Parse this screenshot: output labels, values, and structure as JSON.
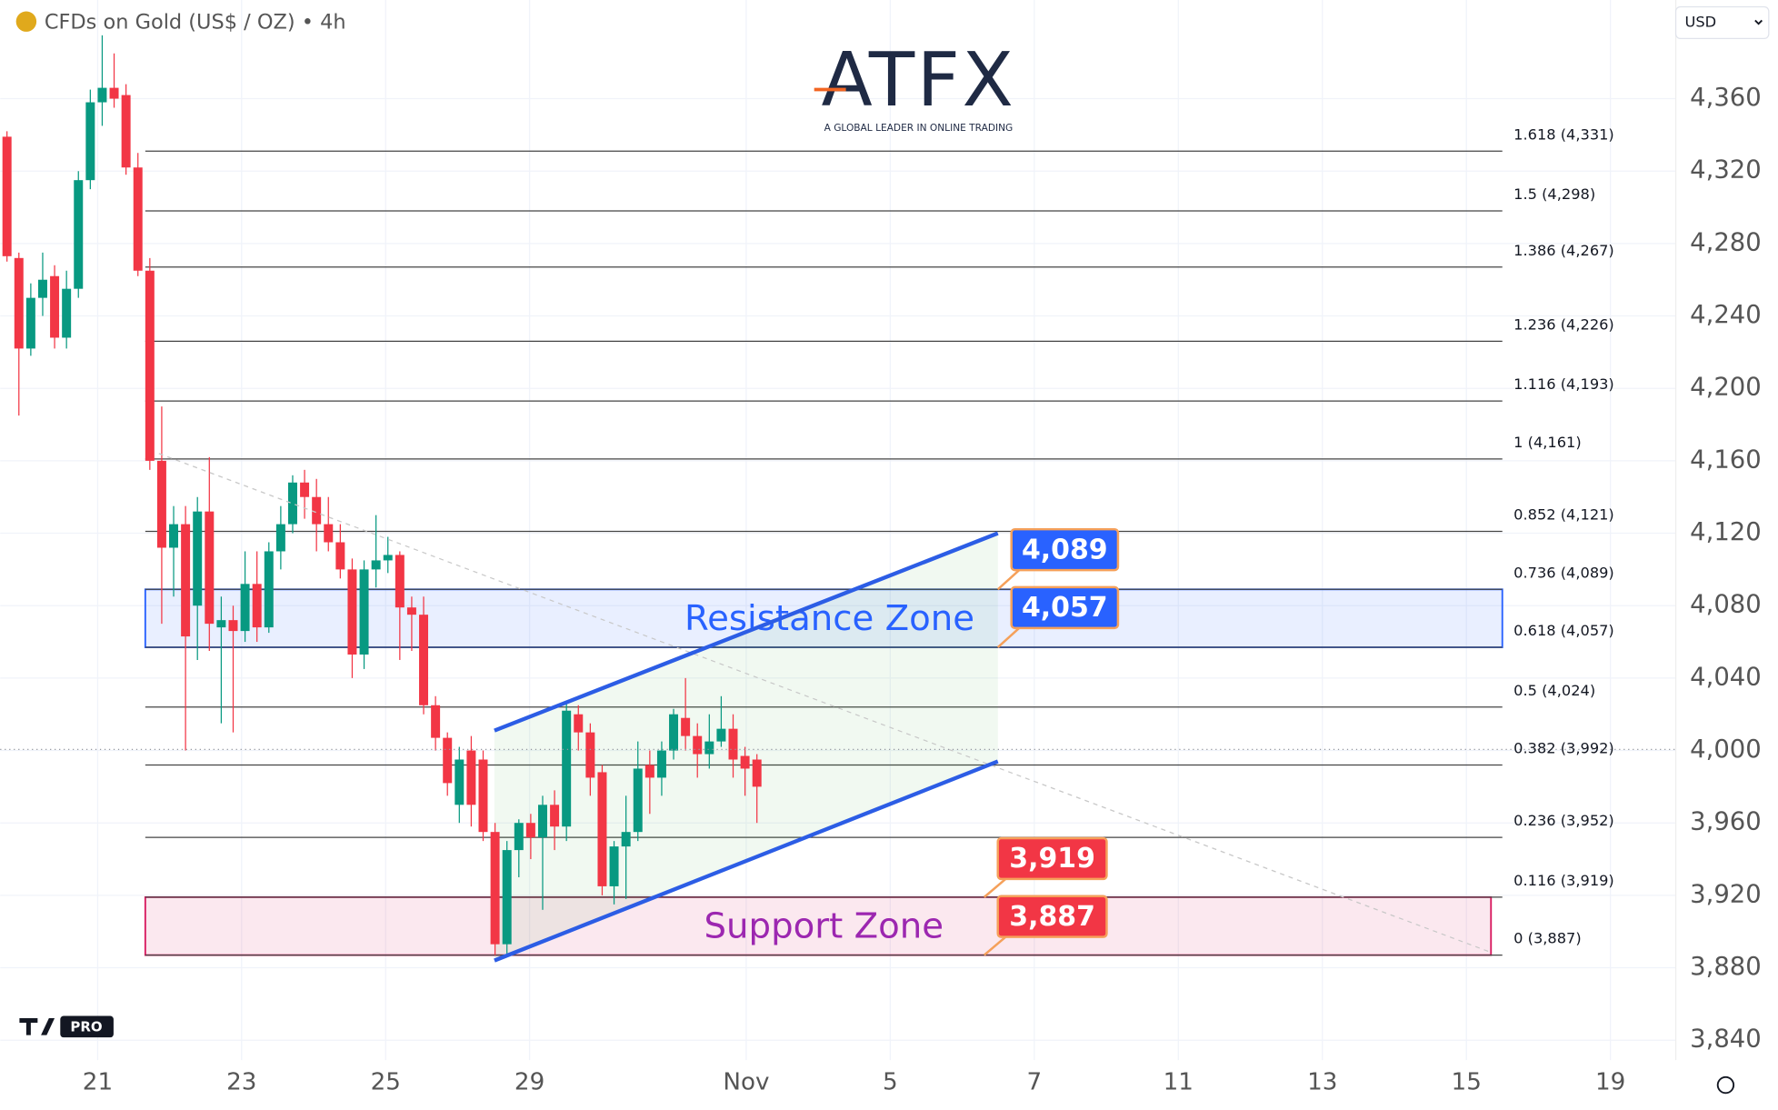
{
  "chart_data": {
    "type": "candlestick",
    "title": "CFDs on Gold (US$ / OZ) • 4h",
    "currency": "USD",
    "logo": "ATFX",
    "tagline": "A GLOBAL LEADER IN ONLINE TRADING",
    "badge": "PRO",
    "up_color": "#089981",
    "down_color": "#f23645",
    "x": [
      0,
      1,
      2,
      3,
      4,
      5,
      6,
      7,
      8,
      9,
      10,
      11,
      12,
      13,
      14,
      15,
      16,
      17,
      18,
      19,
      20,
      21,
      22,
      23,
      24,
      25,
      26,
      27,
      28,
      29,
      30,
      31,
      32,
      33,
      34,
      35,
      36,
      37,
      38,
      39,
      40,
      41,
      42,
      43,
      44,
      45,
      46,
      47,
      48,
      49,
      50,
      51,
      52,
      53,
      54,
      55,
      56,
      57,
      58,
      59,
      60,
      61,
      62,
      63
    ],
    "candles": [
      [
        4339,
        4342,
        4270,
        4273
      ],
      [
        4272,
        4275,
        4185,
        4222
      ],
      [
        4222,
        4258,
        4218,
        4250
      ],
      [
        4250,
        4275,
        4240,
        4260
      ],
      [
        4262,
        4268,
        4222,
        4228
      ],
      [
        4228,
        4265,
        4222,
        4255
      ],
      [
        4255,
        4320,
        4250,
        4315
      ],
      [
        4315,
        4365,
        4310,
        4358
      ],
      [
        4358,
        4395,
        4345,
        4366
      ],
      [
        4366,
        4385,
        4355,
        4360
      ],
      [
        4362,
        4368,
        4318,
        4322
      ],
      [
        4322,
        4330,
        4262,
        4265
      ],
      [
        4265,
        4272,
        4155,
        4160
      ],
      [
        4160,
        4190,
        4070,
        4112
      ],
      [
        4112,
        4135,
        4085,
        4125
      ],
      [
        4125,
        4135,
        4000,
        4063
      ],
      [
        4080,
        4140,
        4050,
        4132
      ],
      [
        4132,
        4162,
        4055,
        4070
      ],
      [
        4068,
        4085,
        4015,
        4072
      ],
      [
        4072,
        4080,
        4010,
        4066
      ],
      [
        4066,
        4110,
        4060,
        4092
      ],
      [
        4092,
        4110,
        4060,
        4068
      ],
      [
        4068,
        4115,
        4065,
        4110
      ],
      [
        4110,
        4135,
        4100,
        4125
      ],
      [
        4125,
        4152,
        4120,
        4148
      ],
      [
        4148,
        4155,
        4128,
        4140
      ],
      [
        4140,
        4150,
        4110,
        4125
      ],
      [
        4125,
        4140,
        4110,
        4115
      ],
      [
        4115,
        4125,
        4095,
        4100
      ],
      [
        4100,
        4106,
        4040,
        4053
      ],
      [
        4053,
        4105,
        4045,
        4100
      ],
      [
        4100,
        4130,
        4090,
        4105
      ],
      [
        4105,
        4118,
        4098,
        4108
      ],
      [
        4108,
        4110,
        4050,
        4079
      ],
      [
        4079,
        4085,
        4055,
        4075
      ],
      [
        4075,
        4085,
        4020,
        4025
      ],
      [
        4025,
        4030,
        4000,
        4007
      ],
      [
        4007,
        4010,
        3975,
        3982
      ],
      [
        3970,
        4002,
        3960,
        3995
      ],
      [
        4000,
        4008,
        3958,
        3970
      ],
      [
        3995,
        4000,
        3950,
        3955
      ],
      [
        3955,
        3960,
        3887,
        3893
      ],
      [
        3893,
        3950,
        3887,
        3945
      ],
      [
        3945,
        3962,
        3930,
        3960
      ],
      [
        3960,
        3965,
        3940,
        3952
      ],
      [
        3952,
        3975,
        3912,
        3970
      ],
      [
        3970,
        3978,
        3945,
        3958
      ],
      [
        3958,
        4027,
        3950,
        4022
      ],
      [
        4020,
        4025,
        4000,
        4010
      ],
      [
        4010,
        4015,
        3975,
        3985
      ],
      [
        3988,
        3992,
        3920,
        3925
      ],
      [
        3925,
        3950,
        3915,
        3947
      ],
      [
        3947,
        3975,
        3918,
        3955
      ],
      [
        3955,
        4005,
        3950,
        3990
      ],
      [
        3992,
        4000,
        3965,
        3985
      ],
      [
        3985,
        4005,
        3975,
        4000
      ],
      [
        4000,
        4023,
        3995,
        4020
      ],
      [
        4018,
        4040,
        4000,
        4008
      ],
      [
        4008,
        4015,
        3985,
        3998
      ],
      [
        3998,
        4020,
        3990,
        4005
      ],
      [
        4005,
        4030,
        4002,
        4012
      ],
      [
        4012,
        4020,
        3985,
        3995
      ],
      [
        3997,
        4002,
        3975,
        3990
      ],
      [
        3995,
        3998,
        3960,
        3980
      ]
    ],
    "xlim": [
      -0.571,
      140.19
    ],
    "xticks": [
      {
        "value": 7.62,
        "label": "21"
      },
      {
        "value": 19.71,
        "label": "23"
      },
      {
        "value": 31.81,
        "label": "25"
      },
      {
        "value": 43.9,
        "label": "29"
      },
      {
        "value": 62.1,
        "label": "Nov"
      },
      {
        "value": 74.2,
        "label": "5"
      },
      {
        "value": 86.3,
        "label": "7"
      },
      {
        "value": 98.4,
        "label": "11"
      },
      {
        "value": 110.5,
        "label": "13"
      },
      {
        "value": 122.6,
        "label": "15"
      },
      {
        "value": 134.7,
        "label": "19"
      }
    ],
    "ylim": [
      3829,
      4414.5
    ],
    "yticks": [
      {
        "value": 3840,
        "label": "3,840"
      },
      {
        "value": 3880,
        "label": "3,880"
      },
      {
        "value": 3920,
        "label": "3,920"
      },
      {
        "value": 3960,
        "label": "3,960"
      },
      {
        "value": 4000,
        "label": "4,000"
      },
      {
        "value": 4040,
        "label": "4,040"
      },
      {
        "value": 4080,
        "label": "4,080"
      },
      {
        "value": 4120,
        "label": "4,120"
      },
      {
        "value": 4160,
        "label": "4,160"
      },
      {
        "value": 4200,
        "label": "4,200"
      },
      {
        "value": 4240,
        "label": "4,240"
      },
      {
        "value": 4280,
        "label": "4,280"
      },
      {
        "value": 4320,
        "label": "4,320"
      },
      {
        "value": 4360,
        "label": "4,360"
      }
    ],
    "grid": true,
    "fib_levels": [
      {
        "value": 4331,
        "label": "1.618 (4,331)"
      },
      {
        "value": 4298,
        "label": "1.5 (4,298)"
      },
      {
        "value": 4267,
        "label": "1.386 (4,267)"
      },
      {
        "value": 4226,
        "label": "1.236 (4,226)"
      },
      {
        "value": 4193,
        "label": "1.116 (4,193)"
      },
      {
        "value": 4161,
        "label": "1 (4,161)"
      },
      {
        "value": 4121,
        "label": "0.852 (4,121)"
      },
      {
        "value": 4089,
        "label": "0.736 (4,089)"
      },
      {
        "value": 4057,
        "label": "0.618 (4,057)"
      },
      {
        "value": 4024,
        "label": "0.5 (4,024)"
      },
      {
        "value": 3992,
        "label": "0.382 (3,992)"
      },
      {
        "value": 3952,
        "label": "0.236 (3,952)"
      },
      {
        "value": 3919,
        "label": "0.116 (3,919)"
      },
      {
        "value": 3887,
        "label": "0 (3,887)"
      }
    ],
    "zones": [
      {
        "name": "Resistance Zone",
        "range": [
          4057,
          4089
        ],
        "color": "#2962ff",
        "text_color": "#2962ff"
      },
      {
        "name": "Support Zone",
        "range": [
          3887,
          3919
        ],
        "color": "#d81b60",
        "text_color": "#9c27b0"
      }
    ],
    "price_tags": [
      {
        "value": 4089,
        "label": "4,089",
        "color": "#2962ff"
      },
      {
        "value": 4057,
        "label": "4,057",
        "color": "#2962ff"
      },
      {
        "value": 3919,
        "label": "3,919",
        "color": "#f23645"
      },
      {
        "value": 3887,
        "label": "3,887",
        "color": "#f23645"
      }
    ],
    "channel": {
      "x": [
        40.95,
        83.24
      ],
      "upper": [
        4011,
        4120
      ],
      "lower": [
        3884,
        3994
      ],
      "color": "#2c5de5"
    }
  }
}
